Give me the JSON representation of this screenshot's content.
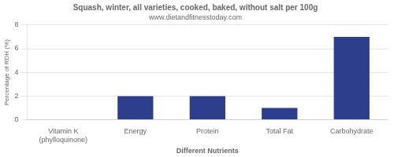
{
  "chart_data": {
    "type": "bar",
    "title": "Squash, winter, all varieties, cooked, baked, without salt per 100g",
    "subtitle": "www.dietandfitnesstoday.com",
    "xlabel": "Different Nutrients",
    "ylabel": "Percentage of RDH (%)",
    "categories": [
      "Vitamin K (phylloquinone)",
      "Energy",
      "Protein",
      "Total Fat",
      "Carbohydrate"
    ],
    "values": [
      0,
      2,
      2,
      1,
      7
    ],
    "color": "#2c3e8c",
    "ylim": [
      0,
      8
    ],
    "yticks": [
      0,
      2,
      4,
      6,
      8
    ],
    "grid": true
  }
}
